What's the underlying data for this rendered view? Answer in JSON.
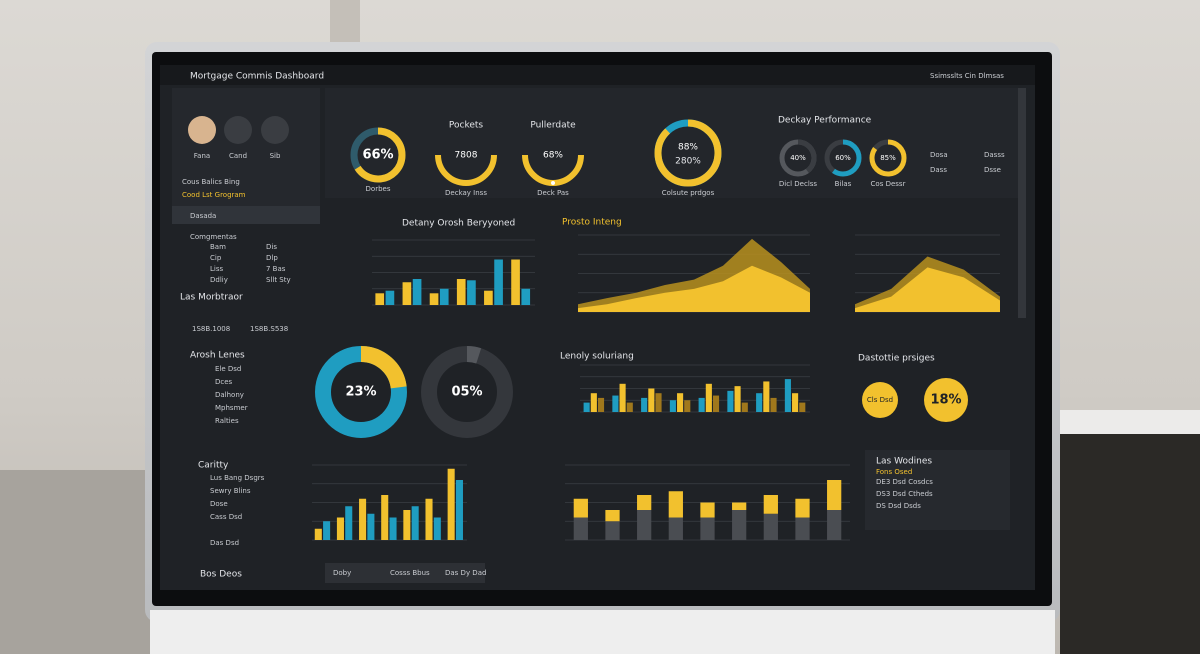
{
  "header": {
    "title": "Mortgage Commis Dashboard",
    "user": "Ssimsslts Cin Dlmsas"
  },
  "sidebar": {
    "profiles": [
      "Fana",
      "Cand",
      "Sib"
    ],
    "section": "Cous Balics Bing",
    "search": "Cood Lst Grogram",
    "filter": "Dasada",
    "menu_title": "Comgmentas",
    "menu": [
      "Bam",
      "Cip",
      "Liss",
      "Ddliy"
    ],
    "menu_values": [
      "Dis",
      "Dlp",
      "7 Bas",
      "Sllt Sty"
    ],
    "group": "Las Morbtraor",
    "totals": [
      "1S8B.1008",
      "1S8B.S538"
    ],
    "list_title": "Arosh Lenes",
    "list": [
      "Ele Dsd",
      "Dces",
      "Dalhony",
      "Mphsmer",
      "Ralties"
    ],
    "bottom_title": "Caritty",
    "bottom_list": [
      "Lus Bang Dsgrs",
      "Sewry Blins",
      "Dose",
      "Cass Dsd",
      "Das Dsd"
    ],
    "footer": "Bos Deos"
  },
  "tabs": [
    "Doby",
    "Cosss Bbus",
    "Das Dy Dad"
  ],
  "panels": [
    "Deckay Performance",
    "Detany Orosh Beryyoned",
    "Prosto Inteng",
    "Lenoly soluriang",
    "Dastottie prsiges",
    "Las Wodines"
  ],
  "right_list": [
    "Fons Osed",
    "DE3 Dsd Cosdcs",
    "DS3 Dsd Ctheds",
    "DS Dsd Dsds"
  ],
  "legend": [
    "Dosa",
    "Dass",
    "Dasss",
    "Dsse"
  ],
  "gauges": [
    {
      "value": 66,
      "label": "66%",
      "caption": "Dorbes"
    },
    {
      "title": "Pockets",
      "label": "7808",
      "caption": "Deckay Inss"
    },
    {
      "title": "Pullerdate",
      "value": 68,
      "label": "68%",
      "caption": "Deck Pas"
    },
    {
      "value": 88,
      "label": "88%",
      "sublabel": "280%",
      "caption": "Colsute prdgos"
    },
    {
      "value": 40,
      "label": "40%",
      "caption": "Dicl Declss"
    },
    {
      "value": 60,
      "label": "60%",
      "caption": "Bilas"
    },
    {
      "value": 85,
      "label": "85%",
      "caption": "Cos Dessr"
    },
    {
      "value": 23,
      "label": "23%"
    },
    {
      "value": 5,
      "label": "05%"
    },
    {
      "value": 18,
      "label": "18%",
      "caption": "Cls Dsd"
    }
  ],
  "charts": {
    "bars_top": {
      "type": "bar",
      "ylim": [
        0,
        100
      ],
      "series": [
        {
          "color": "#f2c12e",
          "values": [
            18,
            35,
            18,
            40,
            22,
            70
          ]
        },
        {
          "color": "#1f9dc1",
          "values": [
            22,
            40,
            25,
            38,
            70,
            25
          ]
        }
      ]
    },
    "area_mid": {
      "type": "area",
      "ylim": [
        0,
        100
      ],
      "series": [
        {
          "color": "#b8901f",
          "values": [
            10,
            18,
            25,
            35,
            42,
            60,
            95,
            65,
            30
          ]
        },
        {
          "color": "#f2c12e",
          "values": [
            5,
            10,
            18,
            25,
            30,
            40,
            60,
            45,
            25
          ]
        }
      ]
    },
    "area_right": {
      "type": "area",
      "ylim": [
        0,
        100
      ],
      "series": [
        {
          "color": "#b8901f",
          "values": [
            10,
            30,
            72,
            55,
            20
          ]
        },
        {
          "color": "#f2c12e",
          "values": [
            5,
            20,
            58,
            45,
            15
          ]
        }
      ]
    },
    "bars_mid": {
      "type": "bar",
      "ylim": [
        0,
        100
      ],
      "series": [
        {
          "color": "#1f9dc1",
          "values": [
            20,
            35,
            30,
            25,
            30,
            45,
            40,
            70
          ]
        },
        {
          "color": "#f2c12e",
          "values": [
            40,
            60,
            50,
            40,
            60,
            55,
            65,
            40
          ]
        },
        {
          "color": "#a0781c",
          "values": [
            30,
            20,
            40,
            25,
            35,
            20,
            30,
            20
          ]
        }
      ]
    },
    "bars_bl": {
      "type": "bar",
      "ylim": [
        0,
        100
      ],
      "series": [
        {
          "color": "#f2c12e",
          "values": [
            15,
            30,
            55,
            60,
            40,
            55,
            95
          ]
        },
        {
          "color": "#1f9dc1",
          "values": [
            25,
            45,
            35,
            30,
            45,
            30,
            80
          ]
        }
      ]
    },
    "bars_br": {
      "type": "stacked",
      "ylim": [
        0,
        100
      ],
      "series": [
        {
          "color": "#4a4d52",
          "values": [
            30,
            25,
            40,
            30,
            30,
            40,
            35,
            30,
            40
          ]
        },
        {
          "color": "#f2c12e",
          "values": [
            25,
            15,
            20,
            35,
            20,
            10,
            25,
            25,
            40
          ]
        }
      ]
    }
  }
}
